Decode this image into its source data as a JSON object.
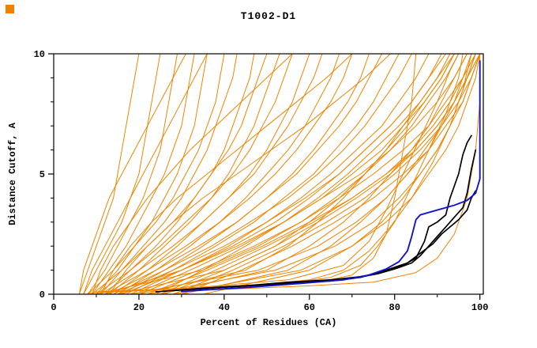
{
  "corner_mark": {
    "color": "#f08000"
  },
  "chart_data": {
    "type": "line",
    "title": "T1002-D1",
    "xlabel": "Percent of Residues (CA)",
    "ylabel": "Distance Cutoff, A",
    "xlim": [
      0,
      100.8
    ],
    "ylim": [
      0,
      10
    ],
    "x_major_ticks": [
      0,
      20,
      40,
      60,
      80,
      100
    ],
    "x_minor_step": 10,
    "y_major_ticks": [
      0,
      5,
      10
    ],
    "y_minor_step": 1,
    "grid": false,
    "legend": "none",
    "colors": {
      "background_series": "#ee8500",
      "highlight_series": "#000000",
      "best_series": "#1414cc",
      "axis": "#000000"
    },
    "series_y_levels": [
      0,
      1,
      2,
      3,
      4,
      5,
      6,
      7,
      8,
      9,
      10
    ],
    "orange_series": [
      {
        "xs": [
          6,
          8,
          10,
          12,
          14,
          15,
          16,
          17,
          18,
          19,
          20
        ]
      },
      {
        "xs": [
          7,
          10,
          13,
          16,
          18,
          20,
          21,
          22,
          23,
          24,
          25
        ]
      },
      {
        "xs": [
          8,
          12,
          15,
          18,
          21,
          23,
          25,
          26,
          27,
          28,
          29
        ]
      },
      {
        "xs": [
          9,
          13,
          17,
          20,
          23,
          26,
          28,
          30,
          31,
          32,
          33
        ]
      },
      {
        "xs": [
          10,
          15,
          19,
          23,
          26,
          29,
          31,
          33,
          34,
          35,
          36
        ]
      },
      {
        "xs": [
          8,
          14,
          19,
          24,
          28,
          31,
          34,
          36,
          38,
          39,
          40
        ]
      },
      {
        "xs": [
          11,
          16,
          21,
          26,
          30,
          33,
          36,
          38,
          40,
          42,
          43
        ]
      },
      {
        "xs": [
          12,
          18,
          24,
          29,
          33,
          37,
          40,
          42,
          44,
          46,
          47
        ]
      },
      {
        "xs": [
          9,
          16,
          22,
          28,
          33,
          37,
          41,
          44,
          46,
          48,
          50
        ]
      },
      {
        "xs": [
          13,
          20,
          26,
          32,
          37,
          41,
          44,
          47,
          49,
          51,
          53
        ]
      },
      {
        "xs": [
          10,
          18,
          25,
          31,
          37,
          42,
          46,
          49,
          52,
          54,
          56
        ]
      },
      {
        "xs": [
          14,
          22,
          29,
          35,
          41,
          46,
          50,
          53,
          56,
          58,
          60
        ]
      },
      {
        "xs": [
          11,
          20,
          28,
          35,
          41,
          47,
          51,
          55,
          58,
          61,
          63
        ]
      },
      {
        "xs": [
          15,
          24,
          32,
          39,
          45,
          50,
          55,
          59,
          62,
          65,
          67
        ]
      },
      {
        "xs": [
          12,
          22,
          31,
          39,
          46,
          52,
          57,
          61,
          65,
          68,
          70
        ]
      },
      {
        "xs": [
          16,
          26,
          35,
          43,
          50,
          56,
          61,
          65,
          69,
          72,
          74
        ]
      },
      {
        "xs": [
          13,
          24,
          34,
          43,
          50,
          57,
          62,
          67,
          71,
          74,
          77
        ]
      },
      {
        "xs": [
          17,
          28,
          38,
          47,
          54,
          61,
          66,
          71,
          75,
          78,
          81
        ]
      },
      {
        "xs": [
          14,
          26,
          37,
          46,
          55,
          62,
          68,
          73,
          77,
          81,
          84
        ]
      },
      {
        "xs": [
          18,
          30,
          41,
          50,
          58,
          65,
          71,
          77,
          81,
          85,
          88
        ]
      },
      {
        "xs": [
          15,
          28,
          40,
          50,
          59,
          67,
          73,
          79,
          84,
          88,
          91
        ]
      },
      {
        "xs": [
          19,
          32,
          44,
          54,
          63,
          70,
          77,
          82,
          87,
          91,
          94
        ]
      },
      {
        "xs": [
          16,
          30,
          43,
          54,
          63,
          72,
          79,
          85,
          90,
          94,
          97
        ]
      },
      {
        "xs": [
          20,
          34,
          47,
          58,
          67,
          75,
          82,
          88,
          92,
          96,
          99
        ]
      },
      {
        "xs": [
          22,
          36,
          49,
          60,
          70,
          78,
          85,
          90,
          94,
          97,
          100
        ]
      },
      {
        "xs": [
          25,
          38,
          50,
          61,
          70,
          78,
          84,
          89,
          93,
          96,
          99
        ]
      },
      {
        "xs": [
          28,
          42,
          54,
          64,
          73,
          80,
          86,
          91,
          95,
          98,
          100
        ]
      },
      {
        "xs": [
          30,
          44,
          56,
          66,
          75,
          82,
          88,
          92,
          96,
          98,
          100
        ]
      },
      {
        "xs": [
          24,
          35,
          45,
          54,
          62,
          69,
          75,
          81,
          86,
          90,
          94
        ]
      },
      {
        "xs": [
          26,
          40,
          52,
          62,
          71,
          79,
          85,
          90,
          94,
          97,
          100
        ]
      },
      {
        "xs": [
          20,
          45,
          55,
          62,
          68,
          73,
          78,
          82,
          86,
          90,
          93
        ]
      },
      {
        "xs": [
          25,
          50,
          60,
          68,
          74,
          79,
          84,
          88,
          91,
          94,
          97
        ]
      },
      {
        "xs": [
          30,
          55,
          65,
          72,
          78,
          83,
          87,
          91,
          94,
          96,
          98
        ]
      },
      {
        "xs": [
          35,
          60,
          70,
          77,
          82,
          86,
          90,
          93,
          95,
          97,
          99
        ]
      },
      {
        "xs": [
          15,
          40,
          52,
          60,
          67,
          73,
          78,
          83,
          87,
          91,
          94
        ]
      },
      {
        "xs": [
          10,
          35,
          48,
          58,
          66,
          73,
          79,
          84,
          88,
          92,
          95
        ]
      },
      {
        "xs": [
          18,
          48,
          62,
          71,
          78,
          83,
          88,
          91,
          94,
          97,
          99
        ]
      },
      {
        "xs": [
          22,
          52,
          66,
          75,
          81,
          86,
          90,
          93,
          96,
          98,
          100
        ]
      },
      {
        "xs": [
          28,
          58,
          70,
          78,
          84,
          88,
          92,
          95,
          97,
          99,
          100
        ]
      },
      {
        "xs": [
          12,
          30,
          42,
          52,
          60,
          67,
          73,
          79,
          84,
          88,
          92
        ]
      },
      {
        "xs": [
          7,
          9,
          12,
          15,
          18,
          21,
          24,
          27,
          30,
          33,
          36
        ]
      },
      {
        "xs": [
          6,
          7,
          9,
          11,
          13,
          16,
          19,
          22,
          25,
          28,
          31
        ]
      },
      {
        "xs": [
          9,
          11,
          14,
          18,
          22,
          27,
          32,
          38,
          44,
          50,
          56
        ]
      },
      {
        "xs": [
          11,
          14,
          18,
          23,
          29,
          36,
          43,
          50,
          57,
          64,
          70
        ]
      },
      {
        "xs": [
          13,
          17,
          22,
          28,
          35,
          43,
          51,
          59,
          66,
          73,
          79
        ]
      },
      {
        "points": [
          [
            8,
            0.05
          ],
          [
            20,
            0.15
          ],
          [
            35,
            0.25
          ],
          [
            50,
            0.35
          ],
          [
            62,
            0.5
          ],
          [
            70,
            0.8
          ],
          [
            75,
            1.5
          ],
          [
            78,
            2.5
          ],
          [
            80,
            4
          ],
          [
            82,
            6
          ],
          [
            84,
            8
          ],
          [
            85,
            10
          ]
        ]
      },
      {
        "points": [
          [
            10,
            0.1
          ],
          [
            25,
            0.2
          ],
          [
            40,
            0.3
          ],
          [
            55,
            0.45
          ],
          [
            65,
            0.7
          ],
          [
            72,
            1.2
          ],
          [
            76,
            2
          ],
          [
            80,
            3
          ],
          [
            84,
            4.5
          ],
          [
            88,
            6
          ],
          [
            92,
            7.5
          ],
          [
            95,
            9
          ],
          [
            96,
            10
          ]
        ]
      },
      {
        "points": [
          [
            12,
            0.1
          ],
          [
            30,
            0.25
          ],
          [
            48,
            0.4
          ],
          [
            60,
            0.6
          ],
          [
            68,
            1
          ],
          [
            74,
            1.8
          ],
          [
            79,
            2.8
          ],
          [
            84,
            4
          ],
          [
            89,
            5.5
          ],
          [
            93,
            7
          ],
          [
            96,
            8.5
          ],
          [
            98,
            10
          ]
        ]
      },
      {
        "points": [
          [
            40,
            0.2
          ],
          [
            60,
            0.35
          ],
          [
            75,
            0.5
          ],
          [
            85,
            0.9
          ],
          [
            90,
            1.5
          ],
          [
            94,
            2.5
          ],
          [
            97,
            4
          ],
          [
            99,
            6
          ],
          [
            100,
            8
          ],
          [
            100,
            10
          ]
        ]
      },
      {
        "points": [
          [
            15,
            0.1
          ],
          [
            35,
            0.3
          ],
          [
            55,
            0.6
          ],
          [
            68,
            1.2
          ],
          [
            74,
            2.2
          ],
          [
            78,
            3.5
          ],
          [
            82,
            5
          ],
          [
            86,
            6.5
          ],
          [
            90,
            8
          ],
          [
            93,
            9.3
          ],
          [
            95,
            10
          ]
        ]
      }
    ],
    "black_series": [
      {
        "points": [
          [
            24,
            0.1
          ],
          [
            35,
            0.25
          ],
          [
            45,
            0.35
          ],
          [
            55,
            0.45
          ],
          [
            65,
            0.55
          ],
          [
            72,
            0.7
          ],
          [
            76,
            0.9
          ],
          [
            78,
            1.0
          ],
          [
            82,
            1.2
          ],
          [
            85,
            1.5
          ],
          [
            87,
            2.2
          ],
          [
            88,
            2.8
          ],
          [
            90,
            3.0
          ],
          [
            92,
            3.3
          ],
          [
            93,
            4.0
          ],
          [
            94,
            4.5
          ],
          [
            95,
            5.0
          ],
          [
            96,
            5.8
          ],
          [
            97,
            6.3
          ],
          [
            98,
            6.6
          ]
        ]
      },
      {
        "points": [
          [
            28,
            0.15
          ],
          [
            40,
            0.3
          ],
          [
            50,
            0.4
          ],
          [
            60,
            0.5
          ],
          [
            70,
            0.65
          ],
          [
            76,
            0.85
          ],
          [
            80,
            1.05
          ],
          [
            84,
            1.3
          ],
          [
            86,
            1.6
          ],
          [
            88,
            2.0
          ],
          [
            90,
            2.4
          ],
          [
            92,
            2.8
          ],
          [
            94,
            3.2
          ],
          [
            96,
            3.6
          ],
          [
            97,
            4.2
          ],
          [
            98,
            5.2
          ],
          [
            99,
            6.0
          ]
        ]
      },
      {
        "points": [
          [
            32,
            0.2
          ],
          [
            45,
            0.35
          ],
          [
            55,
            0.5
          ],
          [
            65,
            0.6
          ],
          [
            73,
            0.75
          ],
          [
            78,
            1.0
          ],
          [
            83,
            1.3
          ],
          [
            86,
            1.7
          ],
          [
            89,
            2.1
          ],
          [
            91,
            2.5
          ],
          [
            93,
            2.8
          ],
          [
            95,
            3.1
          ],
          [
            97,
            3.5
          ],
          [
            98,
            4.0
          ],
          [
            99,
            4.3
          ]
        ]
      }
    ],
    "blue_series": [
      {
        "points": [
          [
            30,
            0.12
          ],
          [
            45,
            0.28
          ],
          [
            58,
            0.45
          ],
          [
            68,
            0.6
          ],
          [
            74,
            0.8
          ],
          [
            78,
            1.05
          ],
          [
            81,
            1.35
          ],
          [
            83,
            1.8
          ],
          [
            84,
            2.4
          ],
          [
            85,
            3.1
          ],
          [
            86,
            3.3
          ],
          [
            90,
            3.5
          ],
          [
            94,
            3.7
          ],
          [
            97,
            3.9
          ],
          [
            99,
            4.2
          ],
          [
            100,
            4.8
          ],
          [
            100,
            9.7
          ]
        ]
      }
    ]
  }
}
